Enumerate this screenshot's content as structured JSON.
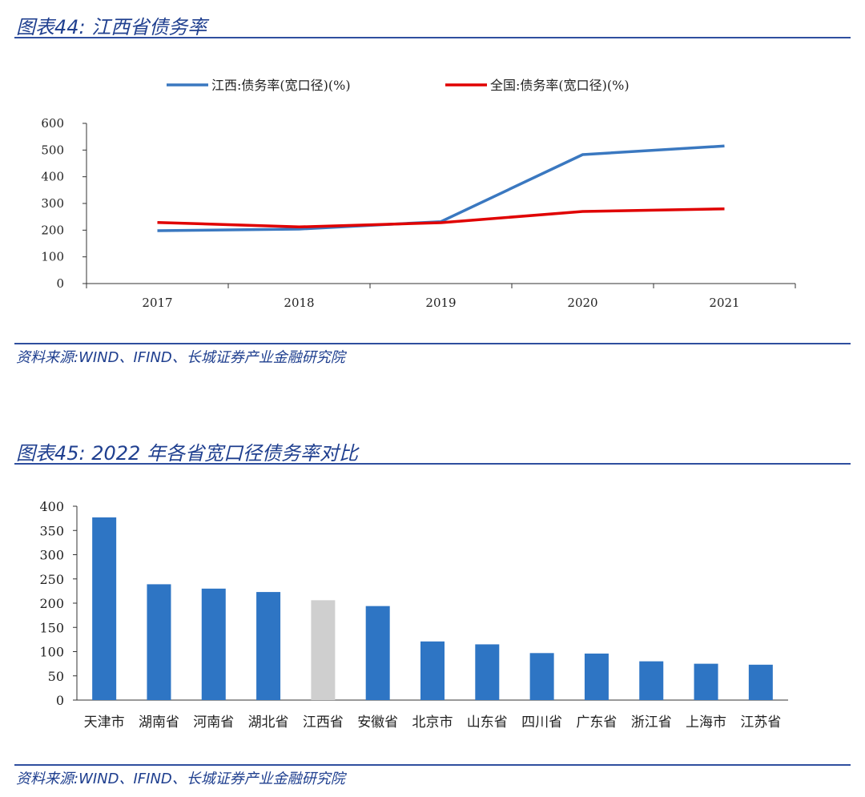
{
  "figure1": {
    "title": "图表44:  江西省债务率",
    "source": "资料来源:WIND、IFIND、长城证券产业金融研究院"
  },
  "figure2": {
    "title": "图表45:  2022 年各省宽口径债务率对比",
    "source": "资料来源:WIND、IFIND、长城证券产业金融研究院"
  },
  "colors": {
    "accent": "#1f3f8f",
    "blue": "#3a78c0",
    "red": "#e00000",
    "bar": "#2e75c4",
    "highlight": "#cfcfcf"
  },
  "chart_data": [
    {
      "type": "line",
      "x": [
        "2017",
        "2018",
        "2019",
        "2020",
        "2021"
      ],
      "ylim": [
        0,
        600
      ],
      "yticks": [
        0,
        100,
        200,
        300,
        400,
        500,
        600
      ],
      "legend": "top",
      "series": [
        {
          "name": "江西:债务率(宽口径)(%)",
          "color": "#3a78c0",
          "values": [
            198,
            204,
            232,
            483,
            515
          ]
        },
        {
          "name": "全国:债务率(宽口径)(%)",
          "color": "#e00000",
          "values": [
            229,
            212,
            228,
            270,
            280
          ]
        }
      ]
    },
    {
      "type": "bar",
      "categories": [
        "天津市",
        "湖南省",
        "河南省",
        "湖北省",
        "江西省",
        "安徽省",
        "北京市",
        "山东省",
        "四川省",
        "广东省",
        "浙江省",
        "上海市",
        "江苏省"
      ],
      "values": [
        377,
        239,
        230,
        223,
        206,
        194,
        121,
        115,
        97,
        96,
        80,
        75,
        73
      ],
      "highlight": [
        "江西省"
      ],
      "ylim": [
        0,
        400
      ],
      "yticks": [
        0,
        50,
        100,
        150,
        200,
        250,
        300,
        350,
        400
      ]
    }
  ]
}
